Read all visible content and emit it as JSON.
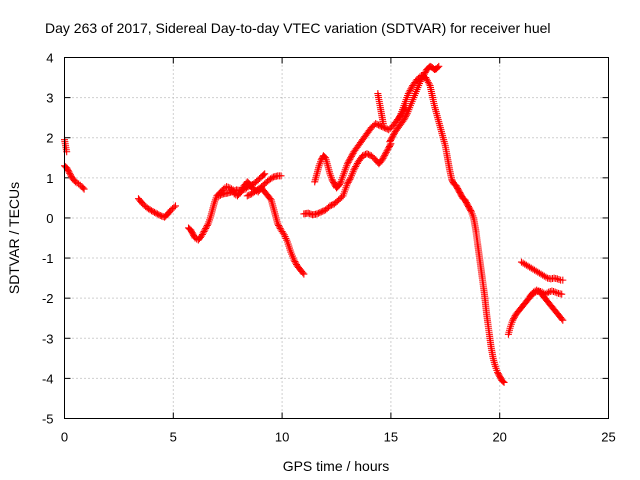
{
  "chart_data": {
    "type": "scatter",
    "title": "Day 263 of 2017, Sidereal Day-to-day VTEC variation (SDTVAR) for receiver huel",
    "xlabel": "GPS time / hours",
    "ylabel": "SDTVAR / TECUs",
    "xlim": [
      0,
      25
    ],
    "ylim": [
      -5,
      4
    ],
    "xticks": [
      "0",
      "5",
      "10",
      "15",
      "20",
      "25"
    ],
    "yticks": [
      "-5",
      "-4",
      "-3",
      "-2",
      "-1",
      "0",
      "1",
      "2",
      "3",
      "4"
    ],
    "grid": true,
    "marker": "+",
    "color": "#ff0000",
    "series": [
      {
        "points": [
          [
            0.0,
            1.3
          ],
          [
            0.1,
            1.25
          ],
          [
            0.2,
            1.15
          ],
          [
            0.35,
            1.0
          ],
          [
            0.5,
            0.9
          ],
          [
            0.65,
            0.85
          ],
          [
            0.8,
            0.78
          ],
          [
            0.9,
            0.72
          ]
        ]
      },
      {
        "points": [
          [
            0.0,
            1.95
          ],
          [
            0.05,
            1.8
          ],
          [
            0.1,
            1.65
          ]
        ]
      },
      {
        "points": [
          [
            3.4,
            0.48
          ],
          [
            3.6,
            0.35
          ],
          [
            3.8,
            0.25
          ],
          [
            4.0,
            0.18
          ],
          [
            4.2,
            0.12
          ],
          [
            4.4,
            0.06
          ],
          [
            4.6,
            0.02
          ],
          [
            4.75,
            0.1
          ],
          [
            4.9,
            0.2
          ],
          [
            5.1,
            0.3
          ]
        ]
      },
      {
        "points": [
          [
            5.7,
            -0.25
          ],
          [
            5.8,
            -0.3
          ],
          [
            5.9,
            -0.4
          ],
          [
            6.0,
            -0.5
          ],
          [
            6.15,
            -0.55
          ],
          [
            6.3,
            -0.45
          ],
          [
            6.45,
            -0.3
          ],
          [
            6.6,
            -0.15
          ],
          [
            6.7,
            0.0
          ],
          [
            6.8,
            0.2
          ],
          [
            6.9,
            0.4
          ],
          [
            7.0,
            0.55
          ],
          [
            7.1,
            0.6
          ],
          [
            7.2,
            0.65
          ],
          [
            7.3,
            0.72
          ],
          [
            7.45,
            0.78
          ],
          [
            7.6,
            0.75
          ],
          [
            7.75,
            0.7
          ]
        ]
      },
      {
        "points": [
          [
            7.1,
            0.55
          ],
          [
            7.3,
            0.6
          ],
          [
            7.5,
            0.62
          ],
          [
            7.7,
            0.65
          ],
          [
            7.9,
            0.7
          ],
          [
            8.1,
            0.68
          ],
          [
            8.3,
            0.72
          ],
          [
            8.5,
            0.8
          ],
          [
            8.7,
            0.85
          ],
          [
            8.9,
            0.95
          ],
          [
            9.1,
            1.05
          ],
          [
            9.2,
            1.1
          ]
        ]
      },
      {
        "points": [
          [
            7.8,
            0.6
          ],
          [
            7.95,
            0.55
          ],
          [
            8.1,
            0.65
          ],
          [
            8.25,
            0.8
          ],
          [
            8.4,
            0.9
          ],
          [
            8.5,
            0.85
          ],
          [
            8.6,
            0.75
          ],
          [
            8.75,
            0.7
          ],
          [
            8.9,
            0.65
          ],
          [
            9.05,
            0.75
          ],
          [
            9.2,
            0.65
          ],
          [
            9.35,
            0.55
          ],
          [
            9.5,
            0.45
          ],
          [
            9.6,
            0.25
          ],
          [
            9.7,
            0.05
          ],
          [
            9.8,
            -0.15
          ],
          [
            9.95,
            -0.3
          ],
          [
            10.1,
            -0.42
          ],
          [
            10.25,
            -0.6
          ],
          [
            10.4,
            -0.85
          ],
          [
            10.55,
            -1.05
          ],
          [
            10.7,
            -1.2
          ],
          [
            10.85,
            -1.3
          ],
          [
            11.0,
            -1.4
          ]
        ]
      },
      {
        "points": [
          [
            8.4,
            0.55
          ],
          [
            8.6,
            0.6
          ],
          [
            8.8,
            0.68
          ],
          [
            9.0,
            0.75
          ],
          [
            9.2,
            0.85
          ],
          [
            9.4,
            0.95
          ],
          [
            9.6,
            1.02
          ],
          [
            9.8,
            1.05
          ],
          [
            9.95,
            1.05
          ]
        ]
      },
      {
        "points": [
          [
            11.0,
            0.1
          ],
          [
            11.2,
            0.12
          ],
          [
            11.4,
            0.08
          ],
          [
            11.6,
            0.1
          ],
          [
            11.8,
            0.15
          ],
          [
            12.0,
            0.2
          ],
          [
            12.2,
            0.3
          ],
          [
            12.4,
            0.35
          ],
          [
            12.6,
            0.45
          ],
          [
            12.8,
            0.55
          ],
          [
            12.9,
            0.7
          ],
          [
            13.0,
            0.85
          ],
          [
            13.15,
            1.0
          ],
          [
            13.3,
            1.2
          ],
          [
            13.5,
            1.4
          ],
          [
            13.7,
            1.55
          ],
          [
            13.9,
            1.6
          ],
          [
            14.1,
            1.55
          ],
          [
            14.3,
            1.45
          ],
          [
            14.45,
            1.35
          ],
          [
            14.6,
            1.45
          ],
          [
            14.75,
            1.6
          ],
          [
            14.9,
            1.75
          ],
          [
            15.0,
            1.85
          ]
        ]
      },
      {
        "points": [
          [
            11.5,
            0.9
          ],
          [
            11.6,
            1.1
          ],
          [
            11.7,
            1.3
          ],
          [
            11.8,
            1.45
          ],
          [
            11.9,
            1.55
          ],
          [
            12.0,
            1.5
          ],
          [
            12.1,
            1.3
          ],
          [
            12.2,
            1.1
          ],
          [
            12.3,
            0.95
          ],
          [
            12.4,
            0.85
          ],
          [
            12.5,
            0.75
          ],
          [
            12.6,
            0.8
          ],
          [
            12.7,
            0.9
          ],
          [
            12.8,
            1.05
          ],
          [
            12.9,
            1.2
          ],
          [
            13.0,
            1.35
          ],
          [
            13.15,
            1.5
          ],
          [
            13.3,
            1.65
          ],
          [
            13.5,
            1.8
          ],
          [
            13.7,
            1.95
          ],
          [
            13.9,
            2.1
          ],
          [
            14.1,
            2.25
          ],
          [
            14.3,
            2.35
          ],
          [
            14.5,
            2.3
          ],
          [
            14.7,
            2.25
          ],
          [
            14.9,
            2.2
          ],
          [
            15.1,
            2.3
          ],
          [
            15.3,
            2.45
          ],
          [
            15.5,
            2.6
          ],
          [
            15.7,
            2.75
          ]
        ]
      },
      {
        "points": [
          [
            14.4,
            3.1
          ],
          [
            14.45,
            2.95
          ],
          [
            14.5,
            2.8
          ],
          [
            14.55,
            2.65
          ],
          [
            14.6,
            2.5
          ],
          [
            14.65,
            2.35
          ]
        ]
      },
      {
        "points": [
          [
            14.95,
            1.9
          ],
          [
            15.05,
            2.0
          ],
          [
            15.2,
            2.15
          ],
          [
            15.4,
            2.3
          ],
          [
            15.6,
            2.45
          ],
          [
            15.75,
            2.6
          ],
          [
            15.9,
            2.8
          ],
          [
            16.05,
            3.0
          ],
          [
            16.2,
            3.2
          ],
          [
            16.35,
            3.4
          ],
          [
            16.5,
            3.55
          ],
          [
            16.65,
            3.7
          ],
          [
            16.8,
            3.78
          ],
          [
            16.9,
            3.75
          ],
          [
            17.0,
            3.7
          ],
          [
            17.1,
            3.72
          ],
          [
            17.2,
            3.78
          ]
        ]
      },
      {
        "points": [
          [
            15.4,
            2.5
          ],
          [
            15.6,
            2.8
          ],
          [
            15.8,
            3.1
          ],
          [
            16.0,
            3.3
          ],
          [
            16.2,
            3.45
          ],
          [
            16.4,
            3.55
          ],
          [
            16.6,
            3.5
          ],
          [
            16.8,
            3.3
          ],
          [
            16.9,
            3.05
          ],
          [
            17.0,
            2.8
          ],
          [
            17.1,
            2.6
          ],
          [
            17.2,
            2.4
          ],
          [
            17.3,
            2.2
          ],
          [
            17.4,
            2.0
          ],
          [
            17.5,
            1.8
          ],
          [
            17.6,
            1.5
          ],
          [
            17.7,
            1.2
          ],
          [
            17.8,
            0.95
          ],
          [
            17.9,
            0.85
          ],
          [
            18.0,
            0.8
          ],
          [
            18.1,
            0.7
          ],
          [
            18.2,
            0.6
          ],
          [
            18.3,
            0.5
          ],
          [
            18.4,
            0.45
          ],
          [
            18.5,
            0.35
          ],
          [
            18.6,
            0.25
          ],
          [
            18.7,
            0.15
          ],
          [
            18.8,
            0.0
          ],
          [
            18.9,
            -0.3
          ],
          [
            19.0,
            -0.7
          ],
          [
            19.1,
            -1.1
          ],
          [
            19.2,
            -1.5
          ],
          [
            19.3,
            -1.9
          ],
          [
            19.4,
            -2.4
          ],
          [
            19.5,
            -2.8
          ],
          [
            19.6,
            -3.2
          ],
          [
            19.7,
            -3.5
          ],
          [
            19.8,
            -3.7
          ],
          [
            19.9,
            -3.85
          ],
          [
            20.0,
            -3.95
          ],
          [
            20.1,
            -4.05
          ],
          [
            20.2,
            -4.1
          ]
        ]
      },
      {
        "points": [
          [
            20.4,
            -2.9
          ],
          [
            20.5,
            -2.7
          ],
          [
            20.6,
            -2.55
          ],
          [
            20.75,
            -2.4
          ],
          [
            20.9,
            -2.3
          ],
          [
            21.05,
            -2.2
          ],
          [
            21.2,
            -2.1
          ],
          [
            21.35,
            -2.0
          ],
          [
            21.5,
            -1.9
          ],
          [
            21.65,
            -1.85
          ],
          [
            21.8,
            -1.82
          ],
          [
            21.95,
            -1.85
          ],
          [
            22.1,
            -1.9
          ],
          [
            22.25,
            -1.85
          ],
          [
            22.4,
            -1.82
          ],
          [
            22.55,
            -1.85
          ],
          [
            22.7,
            -1.88
          ],
          [
            22.85,
            -1.9
          ]
        ]
      },
      {
        "points": [
          [
            21.0,
            -1.1
          ],
          [
            21.15,
            -1.15
          ],
          [
            21.3,
            -1.2
          ],
          [
            21.45,
            -1.25
          ],
          [
            21.6,
            -1.3
          ],
          [
            21.75,
            -1.35
          ],
          [
            21.9,
            -1.4
          ],
          [
            22.05,
            -1.45
          ],
          [
            22.2,
            -1.5
          ],
          [
            22.35,
            -1.52
          ],
          [
            22.5,
            -1.5
          ],
          [
            22.65,
            -1.52
          ],
          [
            22.8,
            -1.55
          ],
          [
            22.9,
            -1.55
          ]
        ]
      },
      {
        "points": [
          [
            21.4,
            -1.95
          ],
          [
            21.55,
            -1.85
          ],
          [
            21.7,
            -1.8
          ],
          [
            21.85,
            -1.85
          ],
          [
            22.0,
            -1.95
          ],
          [
            22.15,
            -2.05
          ],
          [
            22.3,
            -2.15
          ],
          [
            22.45,
            -2.25
          ],
          [
            22.6,
            -2.35
          ],
          [
            22.75,
            -2.45
          ],
          [
            22.9,
            -2.55
          ]
        ]
      }
    ]
  }
}
